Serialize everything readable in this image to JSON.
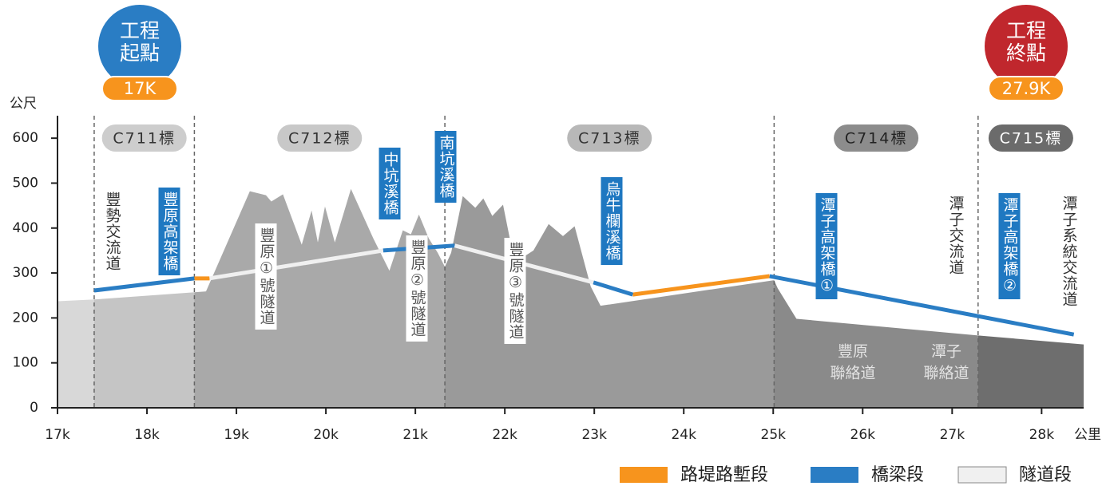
{
  "chart_data": {
    "type": "profile",
    "y_label": "公尺",
    "x_label": "公里",
    "xlim": [
      17,
      28.47
    ],
    "ylim": [
      0,
      650
    ],
    "xticks": [
      {
        "value": 17,
        "label": "17k"
      },
      {
        "value": 18,
        "label": "18k"
      },
      {
        "value": 19,
        "label": "19k"
      },
      {
        "value": 20,
        "label": "20k"
      },
      {
        "value": 21,
        "label": "21k"
      },
      {
        "value": 22,
        "label": "22k"
      },
      {
        "value": 23,
        "label": "23k"
      },
      {
        "value": 24,
        "label": "24k"
      },
      {
        "value": 25,
        "label": "25k"
      },
      {
        "value": 26,
        "label": "26k"
      },
      {
        "value": 27,
        "label": "27k"
      },
      {
        "value": 28,
        "label": "28k"
      }
    ],
    "yticks": [
      0,
      100,
      200,
      300,
      400,
      500,
      600
    ],
    "start_marker": {
      "title": [
        "工程",
        "起點"
      ],
      "label": "17K",
      "color": "#2a7dc4"
    },
    "end_marker": {
      "title": [
        "工程",
        "終點"
      ],
      "label": "27.9K",
      "color": "#c0272d"
    },
    "base_color": "#d8d8d8",
    "boundaries": [
      17.41,
      18.53,
      21.33,
      25.01,
      27.29
    ],
    "sections": [
      {
        "name": "C711標",
        "color": "#c5c5c5",
        "badge": "#cdcdcd",
        "text_color": "#333"
      },
      {
        "name": "C712標",
        "color": "#a9a9a9",
        "badge": "#c8c8c8",
        "text_color": "#333"
      },
      {
        "name": "C713標",
        "color": "#9a9a9a",
        "badge": "#b8b8b8",
        "text_color": "#333"
      },
      {
        "name": "C714標",
        "color": "#8a8a8a",
        "badge": "#8c8c8c",
        "text_color": "#222"
      },
      {
        "name": "C715標",
        "color": "#6e6e6e",
        "badge": "#6b6b6b",
        "text_color": "#fff"
      }
    ],
    "terrain": {
      "x": [
        17.0,
        17.41,
        18.53,
        18.66,
        19.15,
        19.33,
        19.39,
        19.52,
        19.73,
        19.84,
        19.91,
        19.99,
        20.1,
        20.28,
        20.53,
        20.71,
        20.86,
        20.95,
        21.04,
        21.15,
        21.25,
        21.33,
        21.4,
        21.53,
        21.67,
        21.76,
        21.86,
        21.98,
        22.11,
        22.32,
        22.49,
        22.65,
        22.78,
        22.96,
        23.07,
        25.01,
        25.05,
        25.26,
        27.29,
        28.47
      ],
      "y": [
        237,
        241,
        257,
        259,
        482,
        473,
        459,
        475,
        363,
        439,
        368,
        448,
        368,
        487,
        377,
        305,
        395,
        386,
        430,
        377,
        345,
        314,
        345,
        471,
        445,
        466,
        427,
        452,
        323,
        350,
        409,
        382,
        404,
        270,
        227,
        284,
        266,
        198,
        161,
        141
      ]
    },
    "series": [
      {
        "name": "路堤路塹段",
        "color": "#f7941d",
        "segments": [
          {
            "x": [
              18.53,
              18.7
            ],
            "y": [
              288,
              288
            ]
          },
          {
            "x": [
              23.43,
              24.96
            ],
            "y": [
              252,
              293
            ]
          }
        ]
      },
      {
        "name": "橋梁段",
        "color": "#2a7dc4",
        "segments": [
          {
            "x": [
              17.41,
              18.53
            ],
            "y": [
              261,
              288
            ]
          },
          {
            "x": [
              20.64,
              21.44
            ],
            "y": [
              350,
              361
            ]
          },
          {
            "x": [
              22.99,
              23.43
            ],
            "y": [
              279,
              252
            ]
          },
          {
            "x": [
              24.96,
              28.36
            ],
            "y": [
              293,
              163
            ]
          }
        ]
      },
      {
        "name": "隧道段",
        "color": "#f0f0f0",
        "segments": [
          {
            "x": [
              18.7,
              20.64
            ],
            "y": [
              288,
              350
            ]
          },
          {
            "x": [
              21.44,
              22.99
            ],
            "y": [
              361,
              279
            ]
          }
        ]
      }
    ],
    "labels": [
      {
        "text": "豐勢交流道",
        "style": "plain"
      },
      {
        "text": "豐原高架橋",
        "style": "bridge"
      },
      {
        "text": "豐原①號隧道",
        "style": "tunnel"
      },
      {
        "text": "中坑溪橋",
        "style": "bridge"
      },
      {
        "text": "南坑溪橋",
        "style": "bridge"
      },
      {
        "text": "豐原②號隧道",
        "style": "tunnel"
      },
      {
        "text": "豐原③號隧道",
        "style": "tunnel"
      },
      {
        "text": "烏牛欄溪橋",
        "style": "bridge"
      },
      {
        "text": "潭子高架橋①",
        "style": "bridge"
      },
      {
        "text": "潭子交流道",
        "style": "plain"
      },
      {
        "text": "潭子高架橋②",
        "style": "bridge"
      },
      {
        "text": "潭子系統交流道",
        "style": "plain"
      }
    ],
    "link_roads": [
      [
        "豐原",
        "聯絡道"
      ],
      [
        "潭子",
        "聯絡道"
      ]
    ]
  }
}
